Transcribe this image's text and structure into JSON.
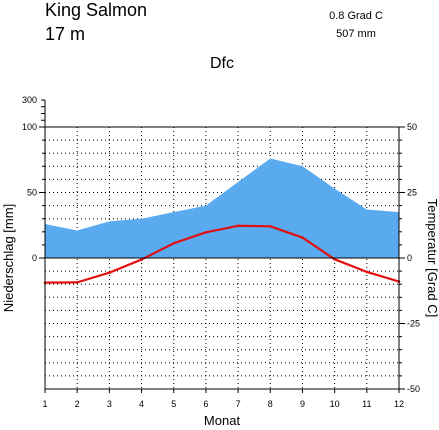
{
  "chart_data": {
    "type": "area",
    "header": {
      "station": "King Salmon",
      "elevation": "17  m",
      "annual_temperature": "0.8 Grad C",
      "annual_precipitation": "507 mm",
      "climate_class": "Dfc"
    },
    "xlabel": "Monat",
    "ylabel_left": "Niederschlag [mm]",
    "ylabel_right": "Temperatur [Grad C]",
    "x": [
      1,
      2,
      3,
      4,
      5,
      6,
      7,
      8,
      9,
      10,
      11,
      12
    ],
    "x_ticks": [
      "1",
      "2",
      "3",
      "4",
      "5",
      "6",
      "7",
      "8",
      "9",
      "10",
      "11",
      "12"
    ],
    "xlim": [
      1,
      12
    ],
    "precip_ticks": [
      "0",
      "50",
      "100",
      "300"
    ],
    "temp_ticks": [
      "50",
      "25",
      "0",
      "-25",
      "-50"
    ],
    "precip_ylim": [
      0,
      100
    ],
    "temp_ylim": [
      -50,
      50
    ],
    "grid": true,
    "series": [
      {
        "values": [
          26,
          21,
          28,
          30,
          35,
          40,
          58,
          76,
          70,
          53,
          37,
          35
        ],
        "color": "#5aaaf0",
        "kind": "area"
      },
      {
        "values": [
          -9.4,
          -9.3,
          -5.6,
          -0.6,
          5.6,
          9.8,
          12.3,
          12.1,
          7.8,
          -0.5,
          -5.3,
          -9.0
        ],
        "color": "#e01010",
        "kind": "line"
      }
    ]
  }
}
